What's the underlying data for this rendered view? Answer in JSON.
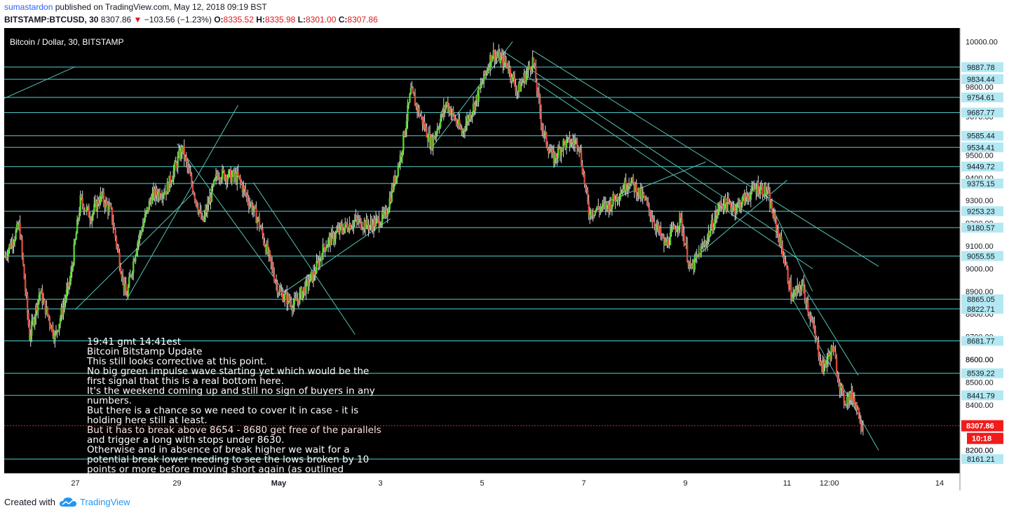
{
  "header": {
    "author": "sumastardon",
    "published_text": "published on TradingView.com, May 12, 2018 09:19 BST",
    "symbol": "BITSTAMP:BTCUSD, 30",
    "last": "8307.86",
    "down_arrow": "▼",
    "change": "−103.56 (−1.23%)",
    "o_label": "O:",
    "o": "8335.52",
    "h_label": "H:",
    "h": "8335.98",
    "l_label": "L:",
    "l": "8301.00",
    "c_label": "C:",
    "c": "8307.86"
  },
  "footer": {
    "created_with": "Created with",
    "brand": "TradingView"
  },
  "chart_data": {
    "type": "candlestick",
    "title": "Bitcoin / Dollar, 30, BITSTAMP",
    "x_tick_labels": [
      "27",
      "29",
      "May",
      "3",
      "5",
      "7",
      "9",
      "11",
      "12:00",
      "14"
    ],
    "x_tick_days": [
      27,
      29,
      31,
      33,
      35,
      37,
      39,
      41,
      41.83,
      44
    ],
    "x_range_days": [
      25.6,
      44.4
    ],
    "y_tick_labels": [
      "10000.00",
      "9800.00",
      "9500.00",
      "9300.00",
      "9100.00",
      "9000.00",
      "8900.00",
      "8600.00",
      "8500.00",
      "8400.00",
      "8200.00"
    ],
    "ylim": [
      8100,
      10060
    ],
    "horizontal_levels": [
      9887.78,
      9834.44,
      9754.61,
      9687.77,
      9585.44,
      9534.41,
      9449.72,
      9375.15,
      9253.23,
      9180.57,
      9055.55,
      8865.05,
      8822.71,
      8681.77,
      8539.22,
      8441.79,
      8161.21
    ],
    "hidden_level_labels": [
      "9670.00",
      "9400.00",
      "9200.00",
      "8800.00",
      "8700.00",
      "8600.00",
      "8200.00"
    ],
    "last_price": "8307.86",
    "countdown": "10:18",
    "path_points": [
      [
        25.6,
        9050
      ],
      [
        25.9,
        9190
      ],
      [
        26.1,
        8700
      ],
      [
        26.3,
        8900
      ],
      [
        26.6,
        8700
      ],
      [
        26.9,
        8950
      ],
      [
        27.1,
        9300
      ],
      [
        27.3,
        9230
      ],
      [
        27.5,
        9320
      ],
      [
        27.7,
        9250
      ],
      [
        28.0,
        8870
      ],
      [
        28.2,
        9100
      ],
      [
        28.5,
        9320
      ],
      [
        28.8,
        9350
      ],
      [
        29.1,
        9530
      ],
      [
        29.5,
        9200
      ],
      [
        29.8,
        9420
      ],
      [
        30.2,
        9400
      ],
      [
        30.6,
        9210
      ],
      [
        31.0,
        8900
      ],
      [
        31.3,
        8840
      ],
      [
        31.7,
        8980
      ],
      [
        31.9,
        9100
      ],
      [
        32.2,
        9170
      ],
      [
        32.5,
        9210
      ],
      [
        32.8,
        9190
      ],
      [
        33.1,
        9230
      ],
      [
        33.4,
        9500
      ],
      [
        33.6,
        9780
      ],
      [
        34.0,
        9550
      ],
      [
        34.3,
        9730
      ],
      [
        34.6,
        9600
      ],
      [
        34.9,
        9750
      ],
      [
        35.2,
        9950
      ],
      [
        35.5,
        9900
      ],
      [
        35.7,
        9780
      ],
      [
        36.0,
        9920
      ],
      [
        36.2,
        9600
      ],
      [
        36.4,
        9480
      ],
      [
        36.6,
        9550
      ],
      [
        36.9,
        9560
      ],
      [
        37.1,
        9250
      ],
      [
        37.5,
        9280
      ],
      [
        37.9,
        9390
      ],
      [
        38.2,
        9300
      ],
      [
        38.6,
        9100
      ],
      [
        38.9,
        9220
      ],
      [
        39.1,
        8990
      ],
      [
        39.4,
        9120
      ],
      [
        39.7,
        9290
      ],
      [
        40.0,
        9270
      ],
      [
        40.4,
        9360
      ],
      [
        40.6,
        9340
      ],
      [
        40.9,
        9090
      ],
      [
        41.1,
        8870
      ],
      [
        41.3,
        8930
      ],
      [
        41.5,
        8750
      ],
      [
        41.7,
        8560
      ],
      [
        41.9,
        8650
      ],
      [
        42.1,
        8420
      ],
      [
        42.3,
        8440
      ],
      [
        42.5,
        8300
      ]
    ],
    "trendlines": [
      [
        [
          25.6,
          9750
        ],
        [
          27.0,
          9890
        ]
      ],
      [
        [
          27.0,
          8820
        ],
        [
          29.3,
          9330
        ]
      ],
      [
        [
          28.0,
          8860
        ],
        [
          30.2,
          9720
        ]
      ],
      [
        [
          29.0,
          9550
        ],
        [
          31.2,
          8870
        ]
      ],
      [
        [
          30.5,
          9380
        ],
        [
          32.5,
          8710
        ]
      ],
      [
        [
          31.0,
          8880
        ],
        [
          33.2,
          9220
        ]
      ],
      [
        [
          34.0,
          9530
        ],
        [
          35.6,
          10000
        ]
      ],
      [
        [
          35.4,
          9960
        ],
        [
          40.8,
          9160
        ]
      ],
      [
        [
          36.0,
          9960
        ],
        [
          42.8,
          9010
        ]
      ],
      [
        [
          35.8,
          9860
        ],
        [
          41.5,
          9000
        ]
      ],
      [
        [
          37.4,
          9290
        ],
        [
          39.4,
          9470
        ]
      ],
      [
        [
          41.3,
          8930
        ],
        [
          42.4,
          8530
        ]
      ],
      [
        [
          41.1,
          8870
        ],
        [
          42.8,
          8200
        ]
      ],
      [
        [
          40.6,
          9320
        ],
        [
          41.5,
          8900
        ]
      ],
      [
        [
          39.3,
          9070
        ],
        [
          41.0,
          9390
        ]
      ]
    ],
    "note_lines": [
      "19:41 gmt  14:41est",
      "Bitcoin Bitstamp Update",
      "This still looks corrective at this point.",
      "No big green impulse wave starting yet which would be the",
      "first signal that this is a real bottom here.",
      "It's the weekend coming up and still no sign of buyers in any",
      "numbers.",
      "But there is a chance so we need to cover it in case - it is",
      "holding here still at least.",
      "But it has to break above 8654 - 8680 get free of the parallels",
      "and trigger a long with stops under 8630.",
      "Otherwise and in absence of break higher we wait for a",
      "potential break lower needing to see the lows broken by 10",
      "points or more before moving short again (as outlined"
    ],
    "highlight_note_line": 9,
    "colors": {
      "background": "#000000",
      "axis_bg": "#ffffff",
      "level_line": "#4fd3d3",
      "level_tag_bg": "#b3e8f2",
      "trendline": "#55c2b6",
      "candle_up": "#58d22b",
      "candle_down": "#d9473b",
      "wick": "#d8d8d8",
      "last_price": "#f21b1b",
      "note_text": "#ffffff",
      "note_highlight": "#ffe1e1"
    }
  }
}
